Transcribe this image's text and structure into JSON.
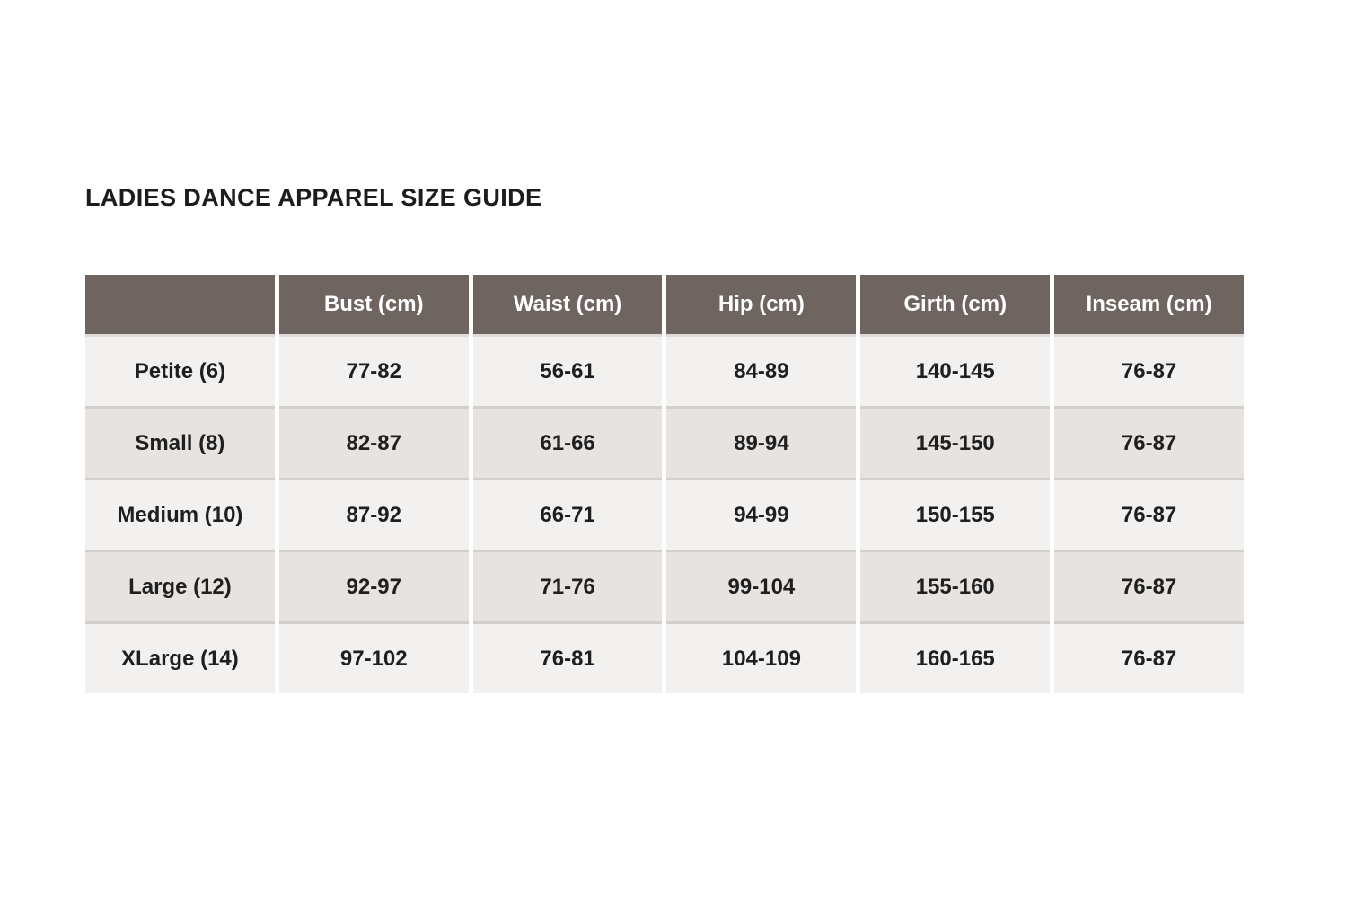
{
  "page_title": "LADIES DANCE APPAREL SIZE GUIDE",
  "size_table": {
    "columns": [
      "",
      "Bust (cm)",
      "Waist (cm)",
      "Hip (cm)",
      "Girth (cm)",
      "Inseam (cm)"
    ],
    "rows": [
      {
        "label": "Petite (6)",
        "values": [
          "77-82",
          "56-61",
          "84-89",
          "140-145",
          "76-87"
        ]
      },
      {
        "label": "Small (8)",
        "values": [
          "82-87",
          "61-66",
          "89-94",
          "145-150",
          "76-87"
        ]
      },
      {
        "label": "Medium (10)",
        "values": [
          "87-92",
          "66-71",
          "94-99",
          "150-155",
          "76-87"
        ]
      },
      {
        "label": "Large (12)",
        "values": [
          "92-97",
          "71-76",
          "99-104",
          "155-160",
          "76-87"
        ]
      },
      {
        "label": "XLarge (14)",
        "values": [
          "97-102",
          "76-81",
          "104-109",
          "160-165",
          "76-87"
        ]
      }
    ]
  },
  "colors": {
    "header_background": "#6e6560",
    "header_text": "#ffffff",
    "row_light": "#f2f1ef",
    "row_dark": "#e6e3e0",
    "row_separator": "#d2cfcb",
    "body_text": "#1f1f1f",
    "title_text": "#1c1c1c",
    "page_background": "#ffffff"
  }
}
